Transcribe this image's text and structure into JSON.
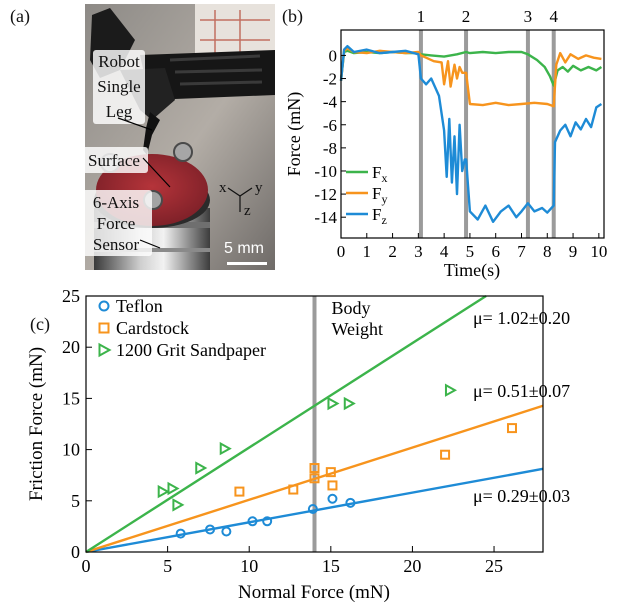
{
  "panel_labels": {
    "a": "(a)",
    "b": "(b)",
    "c": "(c)"
  },
  "photo": {
    "labels": [
      "Robot",
      "Single",
      "Leg",
      "Surface",
      "6-Axis",
      "Force",
      "Sensor"
    ],
    "axes": {
      "x": "x",
      "y": "y",
      "z": "z"
    },
    "scale_bar": "5 mm"
  },
  "colors": {
    "green": "#3cb44b",
    "orange": "#f7941d",
    "blue": "#1e8bd6",
    "gray": "#9b9b9b"
  },
  "chart_data": [
    {
      "type": "line",
      "panel": "(b)",
      "ylabel": "Force (mN)",
      "xlabel": "Time(s)",
      "xlim": [
        0,
        10.2
      ],
      "ylim": [
        -15.8,
        2.2
      ],
      "xticks": [
        0,
        1,
        2,
        3,
        4,
        5,
        6,
        7,
        8,
        9,
        10
      ],
      "yticks": [
        0,
        -2,
        -4,
        -6,
        -8,
        -10,
        -12,
        -14
      ],
      "event_markers": [
        {
          "label": "1",
          "x": 3.1
        },
        {
          "label": "2",
          "x": 4.85
        },
        {
          "label": "3",
          "x": 7.25
        },
        {
          "label": "4",
          "x": 8.25
        }
      ],
      "legend_position": "bottom-left",
      "series": [
        {
          "name": "Fx",
          "main": "F",
          "sub": "x",
          "color": "#3cb44b",
          "x": [
            0,
            0.12,
            0.25,
            0.5,
            1,
            1.5,
            2,
            2.5,
            3,
            3.1,
            3.5,
            4,
            4.5,
            4.85,
            5,
            5.5,
            6,
            6.5,
            7,
            7.25,
            7.6,
            7.9,
            8.1,
            8.25,
            8.4,
            8.6,
            8.8,
            9,
            9.3,
            9.6,
            9.9,
            10.1
          ],
          "y": [
            -2.2,
            0.3,
            0.4,
            0.2,
            0.3,
            0.2,
            0.3,
            0.2,
            0.2,
            0.1,
            0,
            -0.1,
            0.1,
            0.3,
            0.2,
            0.3,
            0.2,
            0.3,
            0.3,
            0.1,
            -0.4,
            -1.0,
            -1.8,
            -2.6,
            -1.3,
            -1.0,
            -1.4,
            -0.9,
            -1.3,
            -1.0,
            -1.3,
            -1.0
          ]
        },
        {
          "name": "Fy",
          "main": "F",
          "sub": "y",
          "color": "#f7941d",
          "x": [
            0,
            0.12,
            0.25,
            0.5,
            1,
            1.5,
            2,
            2.5,
            3,
            3.1,
            3.3,
            3.6,
            3.9,
            4.0,
            4.15,
            4.25,
            4.4,
            4.5,
            4.6,
            4.7,
            4.85,
            5,
            5.5,
            6,
            6.5,
            7,
            7.5,
            8,
            8.25,
            8.35,
            8.5,
            8.7,
            8.9,
            9.2,
            9.5,
            9.8,
            10.1
          ],
          "y": [
            -2.2,
            0.4,
            0.6,
            0.3,
            0.2,
            0.4,
            0.3,
            0.2,
            0.3,
            0,
            -0.2,
            -0.5,
            -0.6,
            -2.5,
            -0.5,
            -2.7,
            -0.8,
            -2.0,
            -1.0,
            -1.5,
            -1.5,
            -4.2,
            -4.3,
            -4.1,
            -4.3,
            -4.2,
            -4.1,
            -4.2,
            -4.4,
            -0.8,
            0.2,
            -0.6,
            0.1,
            -0.3,
            0,
            -0.2,
            -0.3
          ]
        },
        {
          "name": "Fz",
          "main": "F",
          "sub": "z",
          "color": "#1e8bd6",
          "x": [
            0,
            0.12,
            0.25,
            0.5,
            1,
            1.5,
            2,
            2.5,
            3,
            3.1,
            3.3,
            3.5,
            3.8,
            4.0,
            4.1,
            4.2,
            4.3,
            4.4,
            4.5,
            4.6,
            4.7,
            4.8,
            4.85,
            5,
            5.3,
            5.6,
            5.9,
            6.2,
            6.5,
            6.8,
            7.0,
            7.25,
            7.5,
            7.8,
            8.0,
            8.25,
            8.3,
            8.5,
            8.7,
            8.9,
            9.1,
            9.3,
            9.5,
            9.7,
            9.9,
            10.1
          ],
          "y": [
            -2.2,
            0.5,
            0.8,
            0.3,
            0.5,
            0.2,
            0.3,
            0.4,
            0.1,
            -2.0,
            -2.5,
            -2.0,
            -3.5,
            -6.5,
            -10.5,
            -5.5,
            -11.0,
            -7.0,
            -12.0,
            -6.0,
            -10.0,
            -9.0,
            -9.0,
            -13.5,
            -14.2,
            -13.0,
            -14.4,
            -13.5,
            -13.0,
            -14.0,
            -13.5,
            -12.8,
            -13.5,
            -13.2,
            -13.6,
            -13.0,
            -7.5,
            -6.5,
            -6.0,
            -7.0,
            -5.8,
            -6.4,
            -5.5,
            -6.2,
            -4.5,
            -4.2
          ]
        }
      ]
    },
    {
      "type": "scatter",
      "panel": "(c)",
      "xlabel": "Normal Force (mN)",
      "ylabel": "Friction Force (mN)",
      "xlim": [
        0,
        28
      ],
      "ylim": [
        0,
        25
      ],
      "xticks": [
        0,
        5,
        10,
        15,
        20,
        25
      ],
      "yticks": [
        0,
        5,
        10,
        15,
        20,
        25
      ],
      "legend_position": "top-left",
      "body_weight": {
        "x": 14,
        "label_lines": [
          "Body",
          "Weight"
        ]
      },
      "series": [
        {
          "name": "Teflon",
          "marker": "circle",
          "color": "#1e8bd6",
          "mu_label": "μ= 0.29±0.03",
          "fit_slope": 0.29,
          "points": [
            [
              5.8,
              1.8
            ],
            [
              7.6,
              2.2
            ],
            [
              8.6,
              2.0
            ],
            [
              10.2,
              3.0
            ],
            [
              11.1,
              3.0
            ],
            [
              13.9,
              4.2
            ],
            [
              15.1,
              5.2
            ],
            [
              16.2,
              4.8
            ]
          ]
        },
        {
          "name": "Cardstock",
          "marker": "square",
          "color": "#f7941d",
          "mu_label": "μ= 0.51±0.07",
          "fit_slope": 0.51,
          "points": [
            [
              9.4,
              5.9
            ],
            [
              12.7,
              6.1
            ],
            [
              14.0,
              8.2
            ],
            [
              14.0,
              7.2
            ],
            [
              15.0,
              7.8
            ],
            [
              15.1,
              6.5
            ],
            [
              22.0,
              9.5
            ],
            [
              26.1,
              12.1
            ]
          ]
        },
        {
          "name": "1200 Grit Sandpaper",
          "marker": "triangle",
          "color": "#3cb44b",
          "mu_label": "μ= 1.02±0.20",
          "fit_slope": 1.02,
          "points": [
            [
              4.7,
              5.9
            ],
            [
              5.3,
              6.2
            ],
            [
              5.6,
              4.6
            ],
            [
              7.0,
              8.2
            ],
            [
              8.5,
              10.1
            ],
            [
              15.1,
              14.5
            ],
            [
              16.1,
              14.5
            ],
            [
              22.3,
              15.8
            ]
          ]
        }
      ]
    }
  ]
}
